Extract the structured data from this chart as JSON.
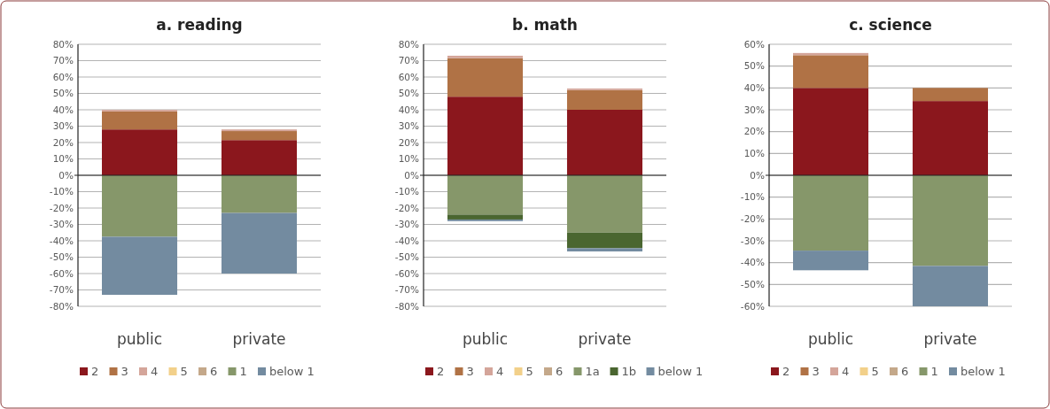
{
  "chart_data": [
    {
      "type": "bar",
      "title": "a. reading",
      "stacked": true,
      "grid": "y",
      "legend": "bottom",
      "categories": [
        "public",
        "private"
      ],
      "ylim": [
        -80,
        80
      ],
      "yticks": [
        {
          "value": 80,
          "label": "80%"
        },
        {
          "value": 70,
          "label": "70%"
        },
        {
          "value": 60,
          "label": "60%"
        },
        {
          "value": 50,
          "label": "50%"
        },
        {
          "value": 40,
          "label": "40%"
        },
        {
          "value": 30,
          "label": "30%"
        },
        {
          "value": 20,
          "label": "20%"
        },
        {
          "value": 10,
          "label": "10%"
        },
        {
          "value": 0,
          "label": "0%"
        },
        {
          "value": -10,
          "label": "-10%"
        },
        {
          "value": -20,
          "label": "-20%"
        },
        {
          "value": -30,
          "label": "-30%"
        },
        {
          "value": -40,
          "label": "-40%"
        },
        {
          "value": -50,
          "label": "-50%"
        },
        {
          "value": -60,
          "label": "-60%"
        },
        {
          "value": -70,
          "label": "-70%"
        },
        {
          "value": -80,
          "label": "-80%"
        }
      ],
      "series": [
        {
          "name": "2",
          "color": "#8b171d",
          "values": [
            28,
            21.5
          ]
        },
        {
          "name": "3",
          "color": "#b07245",
          "values": [
            11,
            5.5
          ]
        },
        {
          "name": "4",
          "color": "#d4a59a",
          "values": [
            1,
            1
          ]
        },
        {
          "name": "5",
          "color": "#f2d08a",
          "values": [
            0,
            0
          ]
        },
        {
          "name": "6",
          "color": "#c4a88a",
          "values": [
            0,
            0
          ]
        },
        {
          "name": "1",
          "color": "#86976a",
          "values": [
            -37.5,
            -23
          ]
        },
        {
          "name": "below 1",
          "color": "#738ba0",
          "values": [
            -35.5,
            -37
          ]
        }
      ]
    },
    {
      "type": "bar",
      "title": "b. math",
      "stacked": true,
      "grid": "y",
      "legend": "bottom",
      "categories": [
        "public",
        "private"
      ],
      "ylim": [
        -80,
        80
      ],
      "yticks": [
        {
          "value": 80,
          "label": "80%"
        },
        {
          "value": 70,
          "label": "70%"
        },
        {
          "value": 60,
          "label": "60%"
        },
        {
          "value": 50,
          "label": "50%"
        },
        {
          "value": 40,
          "label": "40%"
        },
        {
          "value": 30,
          "label": "30%"
        },
        {
          "value": 20,
          "label": "20%"
        },
        {
          "value": 10,
          "label": "10%"
        },
        {
          "value": 0,
          "label": "0%"
        },
        {
          "value": -10,
          "label": "-10%"
        },
        {
          "value": -20,
          "label": "-20%"
        },
        {
          "value": -30,
          "label": "-30%"
        },
        {
          "value": -40,
          "label": "-40%"
        },
        {
          "value": -50,
          "label": "-50%"
        },
        {
          "value": -60,
          "label": "-60%"
        },
        {
          "value": -70,
          "label": "-70%"
        },
        {
          "value": -80,
          "label": "-80%"
        }
      ],
      "series": [
        {
          "name": "2",
          "color": "#8b171d",
          "values": [
            48,
            40
          ]
        },
        {
          "name": "3",
          "color": "#b07245",
          "values": [
            23.5,
            12
          ]
        },
        {
          "name": "4",
          "color": "#d4a59a",
          "values": [
            1.5,
            1
          ]
        },
        {
          "name": "5",
          "color": "#f2d08a",
          "values": [
            0,
            0
          ]
        },
        {
          "name": "6",
          "color": "#c4a88a",
          "values": [
            0,
            0
          ]
        },
        {
          "name": "1a",
          "color": "#86976a",
          "values": [
            -24,
            -35
          ]
        },
        {
          "name": "1b",
          "color": "#4a6630",
          "values": [
            -3,
            -9.5
          ]
        },
        {
          "name": "below 1",
          "color": "#738ba0",
          "values": [
            -1,
            -2
          ]
        }
      ]
    },
    {
      "type": "bar",
      "title": "c. science",
      "stacked": true,
      "grid": "y",
      "legend": "bottom",
      "categories": [
        "public",
        "private"
      ],
      "ylim": [
        -60,
        60
      ],
      "yticks": [
        {
          "value": 60,
          "label": "60%"
        },
        {
          "value": 50,
          "label": "50%"
        },
        {
          "value": 40,
          "label": "40%"
        },
        {
          "value": 30,
          "label": "30%"
        },
        {
          "value": 20,
          "label": "20%"
        },
        {
          "value": 10,
          "label": "10%"
        },
        {
          "value": 0,
          "label": "0%"
        },
        {
          "value": -10,
          "label": "-10%"
        },
        {
          "value": -20,
          "label": "-20%"
        },
        {
          "value": -30,
          "label": "-30%"
        },
        {
          "value": -40,
          "label": "-40%"
        },
        {
          "value": -50,
          "label": "-50%"
        },
        {
          "value": -60,
          "label": "-60%"
        }
      ],
      "series": [
        {
          "name": "2",
          "color": "#8b171d",
          "values": [
            40,
            34
          ]
        },
        {
          "name": "3",
          "color": "#b07245",
          "values": [
            15,
            6
          ]
        },
        {
          "name": "4",
          "color": "#d4a59a",
          "values": [
            1,
            0
          ]
        },
        {
          "name": "5",
          "color": "#f2d08a",
          "values": [
            0,
            0
          ]
        },
        {
          "name": "6",
          "color": "#c4a88a",
          "values": [
            0,
            0
          ]
        },
        {
          "name": "1",
          "color": "#86976a",
          "values": [
            -34.5,
            -41.5
          ]
        },
        {
          "name": "below 1",
          "color": "#738ba0",
          "values": [
            -9,
            -18.5
          ]
        }
      ]
    }
  ]
}
